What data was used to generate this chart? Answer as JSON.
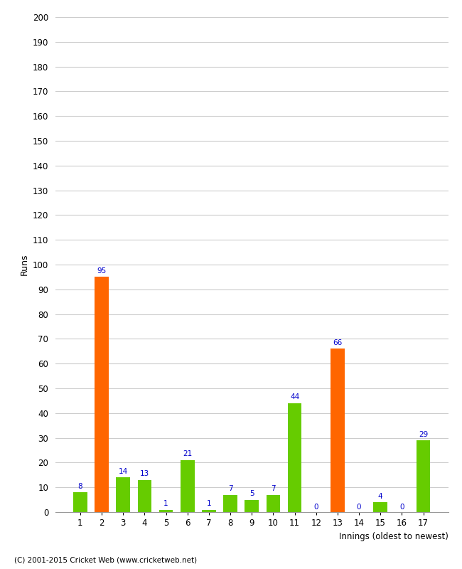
{
  "xlabel": "Innings (oldest to newest)",
  "ylabel": "Runs",
  "categories": [
    "1",
    "2",
    "3",
    "4",
    "5",
    "6",
    "7",
    "8",
    "9",
    "10",
    "11",
    "12",
    "13",
    "14",
    "15",
    "16",
    "17"
  ],
  "values": [
    8,
    95,
    14,
    13,
    1,
    21,
    1,
    7,
    5,
    7,
    44,
    0,
    66,
    0,
    4,
    0,
    29
  ],
  "colors": [
    "#66cc00",
    "#ff6600",
    "#66cc00",
    "#66cc00",
    "#66cc00",
    "#66cc00",
    "#66cc00",
    "#66cc00",
    "#66cc00",
    "#66cc00",
    "#66cc00",
    "#66cc00",
    "#ff6600",
    "#66cc00",
    "#66cc00",
    "#66cc00",
    "#66cc00"
  ],
  "ylim": [
    0,
    200
  ],
  "yticks": [
    0,
    10,
    20,
    30,
    40,
    50,
    60,
    70,
    80,
    90,
    100,
    110,
    120,
    130,
    140,
    150,
    160,
    170,
    180,
    190,
    200
  ],
  "label_color": "#0000cc",
  "grid_color": "#cccccc",
  "background_color": "#ffffff",
  "footnote": "(C) 2001-2015 Cricket Web (www.cricketweb.net)",
  "bar_width": 0.65
}
